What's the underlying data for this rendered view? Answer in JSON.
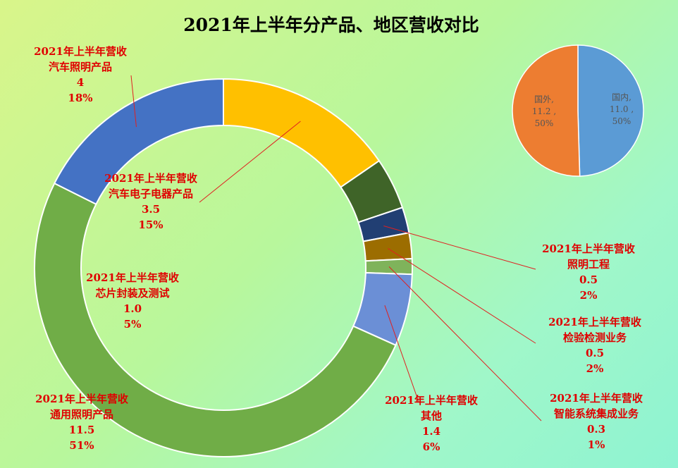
{
  "chart_data": [
    {
      "type": "pie",
      "variant": "doughnut",
      "title": "2021年上半年分产品、地区营收对比",
      "series": [
        {
          "name": "2021年上半年营收",
          "label": "汽车电子电器产品",
          "value": 3.5,
          "percent": "15%",
          "color": "#FFC000"
        },
        {
          "name": "2021年上半年营收",
          "label": "",
          "value": 1.0,
          "percent": "",
          "color": "#3F6428"
        },
        {
          "name": "2021年上半年营收",
          "label": "照明工程",
          "value": 0.5,
          "percent": "2%",
          "color": "#213F73"
        },
        {
          "name": "2021年上半年营收",
          "label": "检验检测业务",
          "value": 0.5,
          "percent": "2%",
          "color": "#9C6D00"
        },
        {
          "name": "2021年上半年营收",
          "label": "智能系统集成业务",
          "value": 0.3,
          "percent": "1%",
          "color": "#7FB35B"
        },
        {
          "name": "2021年上半年营收",
          "label": "其他",
          "value": 1.4,
          "percent": "6%",
          "color": "#6B8FD6"
        },
        {
          "name": "2021年上半年营收",
          "label": "通用照明产品",
          "value": 11.5,
          "percent": "51%",
          "color": "#70AD47"
        },
        {
          "name": "2021年上半年营收",
          "label": "汽车照明产品",
          "value": 4.0,
          "percent": "18%",
          "color": "#4472C4"
        }
      ],
      "inner_label": {
        "name": "2021年上半年营收",
        "label": "芯片封装及测试",
        "value": "1.0",
        "percent": "5%"
      },
      "label_color": "#E00000"
    },
    {
      "type": "pie",
      "slices": [
        {
          "label": "国内,",
          "value": 11.0,
          "value_text": "11.0 ,",
          "percent": "50%",
          "color": "#5B9BD5"
        },
        {
          "label": "国外,",
          "value": 11.2,
          "value_text": "11.2 ,",
          "percent": "50%",
          "color": "#ED7D31"
        }
      ]
    }
  ]
}
